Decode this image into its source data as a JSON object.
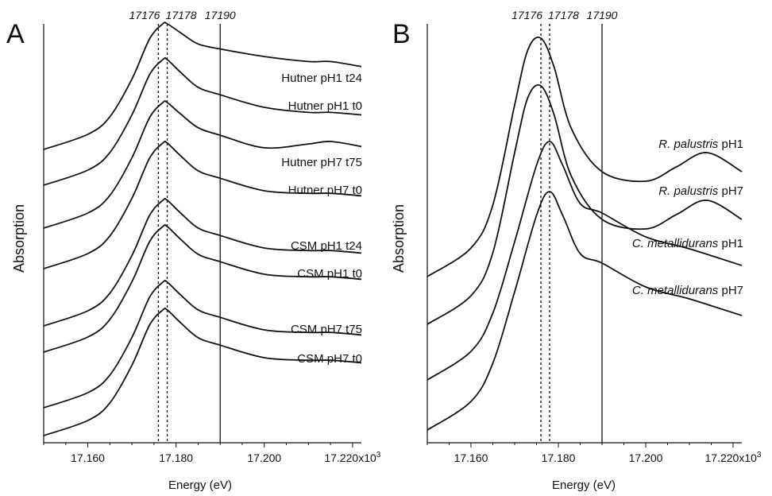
{
  "chart_data": [
    {
      "type": "line",
      "panel": "A",
      "xlabel": "Energy (eV)",
      "ylabel": "Absorption",
      "x_unit_suffix": "x10",
      "x_unit_exp": "3",
      "xlim": [
        17.15,
        17.222
      ],
      "x_ticks": [
        {
          "value": 17.16,
          "label": "17.160"
        },
        {
          "value": 17.18,
          "label": "17.180"
        },
        {
          "value": 17.2,
          "label": "17.200"
        },
        {
          "value": 17.22,
          "label": "17.220"
        }
      ],
      "reference_lines": [
        {
          "value": 17.176,
          "label": "17176",
          "style": "dashed"
        },
        {
          "value": 17.178,
          "label": "17178",
          "style": "dashed"
        },
        {
          "value": 17.19,
          "label": "17190",
          "style": "solid"
        }
      ],
      "y_ticks": "none",
      "series": [
        {
          "name": "Hutner pH1 t24",
          "offset": 0.0,
          "x": [
            17.15,
            17.16,
            17.165,
            17.17,
            17.174,
            17.177,
            17.178,
            17.181,
            17.185,
            17.19,
            17.2,
            17.21,
            17.215,
            17.222
          ],
          "y": [
            0.0,
            0.12,
            0.26,
            0.56,
            0.88,
            1.0,
            1.0,
            0.93,
            0.84,
            0.8,
            0.74,
            0.7,
            0.7,
            0.66
          ]
        },
        {
          "name": "Hutner pH1 t0",
          "offset": 0.0,
          "x": [
            17.15,
            17.16,
            17.165,
            17.17,
            17.174,
            17.177,
            17.178,
            17.181,
            17.185,
            17.19,
            17.2,
            17.21,
            17.215,
            17.222
          ],
          "y": [
            0.0,
            0.12,
            0.26,
            0.56,
            0.88,
            1.0,
            1.0,
            0.9,
            0.78,
            0.72,
            0.62,
            0.58,
            0.58,
            0.56
          ]
        },
        {
          "name": "Hutner pH7 t75",
          "offset": 0.0,
          "x": [
            17.15,
            17.16,
            17.165,
            17.17,
            17.174,
            17.177,
            17.178,
            17.181,
            17.185,
            17.19,
            17.2,
            17.21,
            17.215,
            17.222
          ],
          "y": [
            0.0,
            0.12,
            0.26,
            0.56,
            0.88,
            1.0,
            1.0,
            0.91,
            0.8,
            0.74,
            0.64,
            0.67,
            0.69,
            0.65
          ]
        },
        {
          "name": "Hutner pH7 t0",
          "offset": 0.0,
          "x": [
            17.15,
            17.16,
            17.165,
            17.17,
            17.174,
            17.177,
            17.178,
            17.181,
            17.185,
            17.19,
            17.2,
            17.21,
            17.215,
            17.222
          ],
          "y": [
            0.0,
            0.12,
            0.26,
            0.56,
            0.88,
            1.0,
            1.0,
            0.9,
            0.78,
            0.72,
            0.62,
            0.6,
            0.6,
            0.58
          ]
        },
        {
          "name": "CSM pH1 t24",
          "offset": 0.0,
          "x": [
            17.15,
            17.16,
            17.165,
            17.17,
            17.174,
            17.177,
            17.178,
            17.181,
            17.185,
            17.19,
            17.2,
            17.21,
            17.215,
            17.222
          ],
          "y": [
            0.0,
            0.12,
            0.26,
            0.56,
            0.88,
            1.0,
            1.0,
            0.9,
            0.78,
            0.72,
            0.62,
            0.6,
            0.6,
            0.58
          ]
        },
        {
          "name": "CSM pH1 t0",
          "offset": 0.0,
          "x": [
            17.15,
            17.16,
            17.165,
            17.17,
            17.174,
            17.177,
            17.178,
            17.181,
            17.185,
            17.19,
            17.2,
            17.21,
            17.215,
            17.222
          ],
          "y": [
            0.0,
            0.12,
            0.26,
            0.56,
            0.88,
            1.0,
            1.0,
            0.9,
            0.78,
            0.72,
            0.62,
            0.6,
            0.6,
            0.58
          ]
        },
        {
          "name": "CSM pH7 t75",
          "offset": 0.0,
          "x": [
            17.15,
            17.16,
            17.165,
            17.17,
            17.174,
            17.177,
            17.178,
            17.181,
            17.185,
            17.19,
            17.2,
            17.21,
            17.215,
            17.222
          ],
          "y": [
            0.0,
            0.12,
            0.26,
            0.56,
            0.88,
            1.0,
            1.0,
            0.9,
            0.78,
            0.72,
            0.62,
            0.6,
            0.6,
            0.58
          ]
        },
        {
          "name": "CSM pH7 t0",
          "offset": 0.0,
          "x": [
            17.15,
            17.16,
            17.165,
            17.17,
            17.174,
            17.177,
            17.178,
            17.181,
            17.185,
            17.19,
            17.2,
            17.21,
            17.215,
            17.222
          ],
          "y": [
            0.0,
            0.12,
            0.26,
            0.56,
            0.88,
            1.0,
            1.0,
            0.9,
            0.78,
            0.72,
            0.62,
            0.6,
            0.6,
            0.58
          ]
        }
      ]
    },
    {
      "type": "line",
      "panel": "B",
      "xlabel": "Energy (eV)",
      "ylabel": "Absorption",
      "x_unit_suffix": "x10",
      "x_unit_exp": "3",
      "xlim": [
        17.15,
        17.222
      ],
      "x_ticks": [
        {
          "value": 17.16,
          "label": "17.160"
        },
        {
          "value": 17.18,
          "label": "17.180"
        },
        {
          "value": 17.2,
          "label": "17.200"
        },
        {
          "value": 17.22,
          "label": "17.220"
        }
      ],
      "reference_lines": [
        {
          "value": 17.176,
          "label": "17176",
          "style": "dashed"
        },
        {
          "value": 17.178,
          "label": "17178",
          "style": "dashed"
        },
        {
          "value": 17.19,
          "label": "17190",
          "style": "solid"
        }
      ],
      "y_ticks": "none",
      "series": [
        {
          "name_italic": "R. palustris",
          "name_plain": " pH1",
          "x": [
            17.15,
            17.16,
            17.165,
            17.17,
            17.173,
            17.176,
            17.179,
            17.183,
            17.19,
            17.2,
            17.207,
            17.214,
            17.222
          ],
          "y": [
            0.0,
            0.12,
            0.3,
            0.72,
            0.95,
            1.0,
            0.88,
            0.62,
            0.44,
            0.4,
            0.46,
            0.52,
            0.44
          ]
        },
        {
          "name_italic": "R. palustris",
          "name_plain": " pH7",
          "x": [
            17.15,
            17.16,
            17.165,
            17.17,
            17.173,
            17.176,
            17.179,
            17.183,
            17.19,
            17.2,
            17.207,
            17.214,
            17.222
          ],
          "y": [
            0.0,
            0.12,
            0.3,
            0.72,
            0.95,
            1.0,
            0.88,
            0.62,
            0.44,
            0.4,
            0.46,
            0.52,
            0.44
          ]
        },
        {
          "name_italic": "C. metallidurans",
          "name_plain": " pH1",
          "x": [
            17.15,
            17.16,
            17.165,
            17.17,
            17.175,
            17.178,
            17.181,
            17.185,
            17.19,
            17.2,
            17.21,
            17.222
          ],
          "y": [
            0.0,
            0.12,
            0.28,
            0.58,
            0.9,
            1.0,
            0.9,
            0.74,
            0.7,
            0.6,
            0.55,
            0.48
          ]
        },
        {
          "name_italic": "C. metallidurans",
          "name_plain": " pH7",
          "x": [
            17.15,
            17.16,
            17.165,
            17.17,
            17.175,
            17.178,
            17.181,
            17.185,
            17.19,
            17.2,
            17.21,
            17.222
          ],
          "y": [
            0.0,
            0.12,
            0.28,
            0.58,
            0.9,
            1.0,
            0.9,
            0.74,
            0.7,
            0.6,
            0.55,
            0.48
          ]
        }
      ]
    }
  ]
}
